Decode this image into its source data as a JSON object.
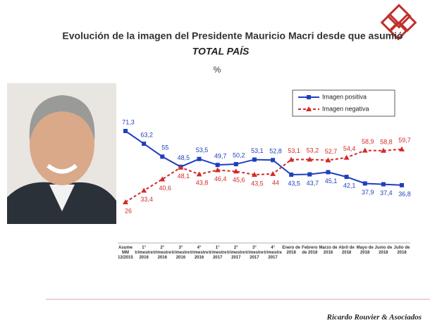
{
  "chart_data": {
    "type": "line",
    "title": "Evolución de la imagen del Presidente Mauricio Macri desde que asumió",
    "subtitle": "TOTAL PAÍS",
    "unit_label": "%",
    "footer": "Ricardo Rouvier & Asociados",
    "categories": [
      "Asume MM 12/2015",
      "1° trimestre 2016",
      "2° trimestre 2016",
      "3° trimestre 2016",
      "4° trimestre 2016",
      "1° trimestre 2017",
      "2° trimestre 2017",
      "3° trimestre 2017",
      "4° trimestre 2017",
      "Enero de 2018",
      "Febrero de 2018",
      "Marzo de 2018",
      "Abril de 2018",
      "Mayo de 2018",
      "Junio de 2018",
      "Julio de 2018"
    ],
    "series": [
      {
        "name": "Imagen positiva",
        "color": "#1f3fbf",
        "marker": "square",
        "dashed": false,
        "values": [
          71.3,
          63.2,
          55,
          48.5,
          53.5,
          49.7,
          50.2,
          53.1,
          52.8,
          43.5,
          43.7,
          45.1,
          42.1,
          37.9,
          37.4,
          36.8
        ],
        "value_labels": [
          "71,3",
          "63,2",
          "55",
          "48,5",
          "53,5",
          "49,7",
          "50,2",
          "53,1",
          "52,8",
          "43,5",
          "43,7",
          "45,1",
          "42,1",
          "37,9",
          "37,4",
          "36,8"
        ]
      },
      {
        "name": "Imagen negativa",
        "color": "#d42a2a",
        "marker": "triangle",
        "dashed": true,
        "values": [
          26,
          33.4,
          40.6,
          48.1,
          43.8,
          46.4,
          45.6,
          43.5,
          44,
          53.1,
          53.2,
          52.7,
          54.4,
          58.9,
          58.8,
          59.7
        ],
        "value_labels": [
          "26",
          "33,4",
          "40,6",
          "48,1",
          "43,8",
          "46,4",
          "45,6",
          "43,5",
          "44",
          "53,1",
          "53,2",
          "52,7",
          "54,4",
          "58,9",
          "58,8",
          "59,7"
        ]
      }
    ],
    "ylim": [
      0,
      80
    ]
  }
}
